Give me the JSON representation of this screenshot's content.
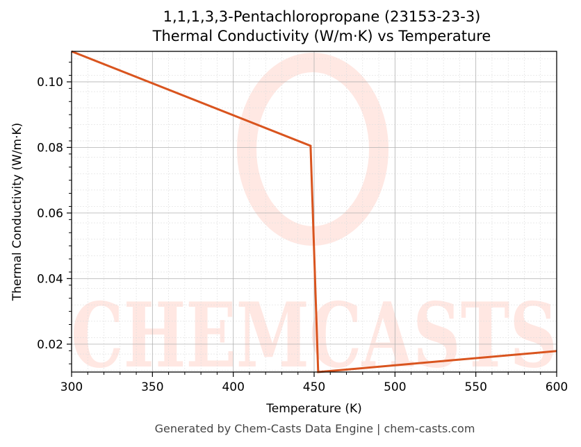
{
  "chart_data": {
    "type": "line",
    "title": "1,1,1,3,3-Pentachloropropane (23153-23-3)",
    "subtitle": "Thermal Conductivity (W/m·K) vs Temperature",
    "xlabel": "Temperature (K)",
    "ylabel": "Thermal Conductivity (W/m·K)",
    "xlim": [
      300,
      600
    ],
    "ylim": [
      0.0115,
      0.1093
    ],
    "xticks": [
      "300",
      "350",
      "400",
      "450",
      "500",
      "550",
      "600"
    ],
    "yticks": [
      "0.02",
      "0.04",
      "0.06",
      "0.08",
      "0.10"
    ],
    "grid": true,
    "legend": null,
    "series": [
      {
        "name": "Thermal Conductivity",
        "color": "#d9541e",
        "x": [
          300,
          447.8,
          452.5,
          600
        ],
        "y": [
          0.1093,
          0.0805,
          0.0115,
          0.0179
        ]
      }
    ],
    "watermark": "CHEMCASTS"
  },
  "footer": "Generated by Chem-Casts Data Engine | chem-casts.com"
}
